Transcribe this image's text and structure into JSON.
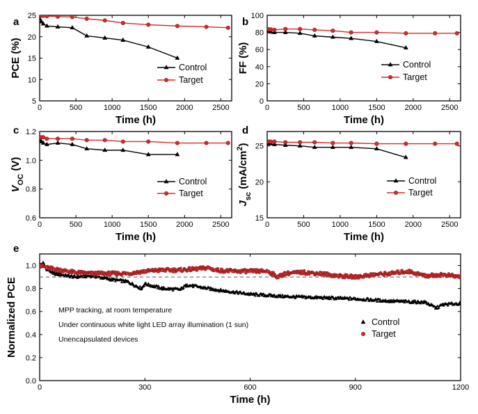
{
  "figure_title": "",
  "chart_data": [
    {
      "id": "a",
      "panel_label": "a",
      "type": "line",
      "xlabel": "Time (h)",
      "ylabel": "PCE (%)",
      "xlim": [
        0,
        2650
      ],
      "ylim": [
        5,
        25
      ],
      "xticks": [
        0,
        500,
        1000,
        1500,
        2000,
        2500
      ],
      "yticks": [
        5,
        10,
        15,
        20,
        25
      ],
      "legend_position": "lower-right",
      "series": [
        {
          "name": "Control",
          "color": "#000000",
          "marker": "triangle",
          "x": [
            0,
            25,
            50,
            100,
            250,
            450,
            650,
            900,
            1150,
            1500,
            1900
          ],
          "y": [
            24.2,
            23.5,
            23.0,
            22.5,
            22.3,
            22.1,
            20.2,
            19.7,
            19.2,
            17.6,
            15.0
          ]
        },
        {
          "name": "Target",
          "color": "#d22b2b",
          "marker": "circle",
          "x": [
            0,
            25,
            50,
            100,
            250,
            450,
            650,
            900,
            1150,
            1500,
            1900,
            2300,
            2600
          ],
          "y": [
            25.0,
            24.9,
            24.9,
            24.8,
            24.7,
            24.6,
            24.2,
            23.8,
            23.2,
            22.8,
            22.5,
            22.3,
            22.1
          ]
        }
      ]
    },
    {
      "id": "b",
      "panel_label": "b",
      "type": "line",
      "xlabel": "Time (h)",
      "ylabel": "FF (%)",
      "xlim": [
        0,
        2650
      ],
      "ylim": [
        0,
        100
      ],
      "xticks": [
        0,
        500,
        1000,
        1500,
        2000,
        2500
      ],
      "yticks": [
        0,
        20,
        40,
        60,
        80,
        100
      ],
      "legend_position": "lower-right",
      "series": [
        {
          "name": "Control",
          "color": "#000000",
          "marker": "triangle",
          "x": [
            0,
            25,
            50,
            100,
            250,
            450,
            650,
            900,
            1150,
            1500,
            1900
          ],
          "y": [
            82,
            81,
            80.5,
            80,
            80,
            79,
            76,
            74.5,
            73,
            69.5,
            62
          ]
        },
        {
          "name": "Target",
          "color": "#d22b2b",
          "marker": "circle",
          "x": [
            0,
            25,
            50,
            100,
            250,
            450,
            650,
            900,
            1150,
            1500,
            1900,
            2300,
            2600
          ],
          "y": [
            84,
            83.5,
            83.5,
            83,
            84,
            84,
            83,
            82,
            80,
            80,
            79,
            79,
            79
          ]
        }
      ]
    },
    {
      "id": "c",
      "panel_label": "c",
      "type": "line",
      "xlabel": "Time (h)",
      "ylabel": "V_OC (V)",
      "ylabel_main": "V",
      "ylabel_sub": "OC",
      "ylabel_unit": " (V)",
      "xlim": [
        0,
        2650
      ],
      "ylim": [
        0.6,
        1.2
      ],
      "xticks": [
        0,
        500,
        1000,
        1500,
        2000,
        2500
      ],
      "yticks": [
        0.6,
        0.8,
        1.0,
        1.2
      ],
      "legend_position": "lower-right",
      "series": [
        {
          "name": "Control",
          "color": "#000000",
          "marker": "triangle",
          "x": [
            0,
            25,
            50,
            100,
            250,
            450,
            650,
            900,
            1150,
            1500,
            1900
          ],
          "y": [
            1.14,
            1.13,
            1.12,
            1.11,
            1.12,
            1.11,
            1.08,
            1.07,
            1.07,
            1.04,
            1.04
          ]
        },
        {
          "name": "Target",
          "color": "#d22b2b",
          "marker": "circle",
          "x": [
            0,
            25,
            50,
            100,
            250,
            450,
            650,
            900,
            1150,
            1500,
            1900,
            2300,
            2600
          ],
          "y": [
            1.16,
            1.16,
            1.16,
            1.15,
            1.15,
            1.15,
            1.14,
            1.14,
            1.13,
            1.13,
            1.12,
            1.12,
            1.12
          ]
        }
      ]
    },
    {
      "id": "d",
      "panel_label": "d",
      "type": "line",
      "xlabel": "Time (h)",
      "ylabel": "J_sc (mA/cm2)",
      "ylabel_main": "J",
      "ylabel_sub": "sc",
      "ylabel_unit": " (mA/cm",
      "ylabel_sup": "2",
      "ylabel_close": ")",
      "xlim": [
        0,
        2650
      ],
      "ylim": [
        15,
        27
      ],
      "xticks": [
        0,
        500,
        1000,
        1500,
        2000,
        2500
      ],
      "yticks": [
        15,
        20,
        25
      ],
      "legend_position": "lower-right",
      "series": [
        {
          "name": "Control",
          "color": "#000000",
          "marker": "triangle",
          "x": [
            0,
            25,
            50,
            100,
            250,
            450,
            650,
            900,
            1150,
            1500,
            1900
          ],
          "y": [
            25.4,
            25.3,
            25.3,
            25.2,
            25.1,
            25.0,
            24.8,
            24.8,
            24.8,
            24.6,
            23.4
          ]
        },
        {
          "name": "Target",
          "color": "#d22b2b",
          "marker": "circle",
          "x": [
            0,
            25,
            50,
            100,
            250,
            450,
            650,
            900,
            1150,
            1500,
            1900,
            2300,
            2600
          ],
          "y": [
            25.6,
            25.6,
            25.6,
            25.6,
            25.5,
            25.5,
            25.5,
            25.4,
            25.4,
            25.3,
            25.3,
            25.3,
            25.3
          ]
        }
      ]
    },
    {
      "id": "e",
      "panel_label": "e",
      "type": "scatter",
      "xlabel": "Time (h)",
      "ylabel": "Normalized PCE",
      "xlim": [
        0,
        1200
      ],
      "ylim": [
        0,
        1.1
      ],
      "xticks": [
        0,
        300,
        600,
        900,
        1200
      ],
      "yticks": [
        0.0,
        0.2,
        0.4,
        0.6,
        0.8,
        1.0
      ],
      "reference_line": {
        "y": 0.9,
        "style": "dashed"
      },
      "legend_position": "lower-right",
      "annotations": [
        "MPP tracking, at room temperature",
        "Under continuous white light LED array illumination (1 sun)",
        "Unencapsulated devices"
      ],
      "series": [
        {
          "name": "Control",
          "color": "#000000",
          "marker": "triangle",
          "x": [
            0,
            10,
            20,
            40,
            60,
            80,
            100,
            150,
            200,
            250,
            290,
            300,
            350,
            400,
            420,
            500,
            600,
            700,
            800,
            900,
            1000,
            1100,
            1130,
            1150,
            1200
          ],
          "y": [
            1.0,
            1.02,
            0.97,
            0.93,
            0.92,
            0.91,
            0.9,
            0.91,
            0.88,
            0.86,
            0.8,
            0.84,
            0.8,
            0.79,
            0.83,
            0.79,
            0.75,
            0.73,
            0.72,
            0.71,
            0.69,
            0.68,
            0.63,
            0.66,
            0.67
          ]
        },
        {
          "name": "Target",
          "color": "#d22b2b",
          "marker": "circle",
          "x": [
            0,
            20,
            40,
            60,
            80,
            100,
            150,
            200,
            250,
            300,
            350,
            400,
            450,
            480,
            500,
            550,
            600,
            650,
            680,
            700,
            750,
            800,
            850,
            900,
            950,
            1000,
            1050,
            1100,
            1150,
            1200
          ],
          "y": [
            1.0,
            0.98,
            0.97,
            0.96,
            0.95,
            0.94,
            0.93,
            0.93,
            0.93,
            0.95,
            0.96,
            0.96,
            0.97,
            0.98,
            0.96,
            0.95,
            0.95,
            0.95,
            0.9,
            0.93,
            0.94,
            0.93,
            0.91,
            0.9,
            0.92,
            0.93,
            0.95,
            0.91,
            0.92,
            0.9
          ]
        }
      ]
    }
  ]
}
